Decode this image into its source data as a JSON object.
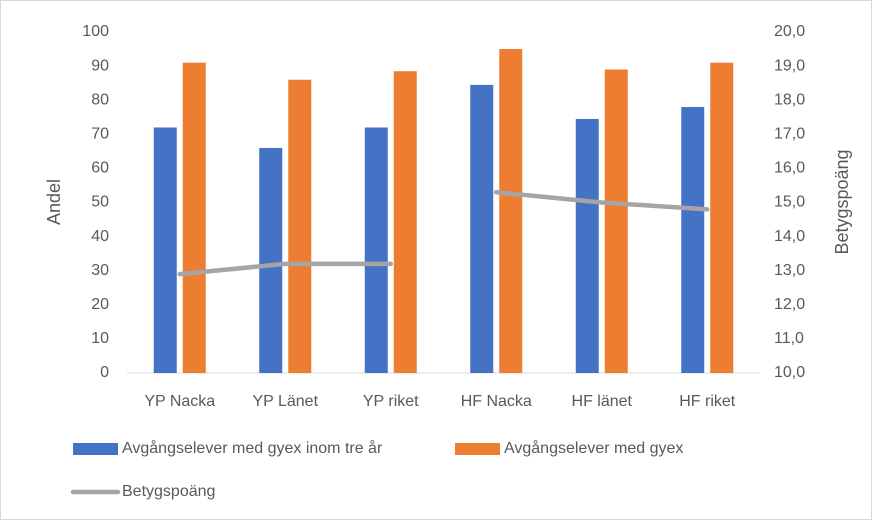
{
  "chart_data": {
    "type": "bar",
    "categories": [
      "YP Nacka",
      "YP Länet",
      "YP riket",
      "HF Nacka",
      "HF länet",
      "HF riket"
    ],
    "series": [
      {
        "name": "Avgångselever med gyex inom tre år",
        "color": "#4472c4",
        "values": [
          72,
          66,
          72,
          84.5,
          74.5,
          78
        ]
      },
      {
        "name": "Avgångselever med gyex",
        "color": "#ed7d31",
        "values": [
          91,
          86,
          88.5,
          95,
          89,
          91
        ]
      },
      {
        "name": "Betygspoäng",
        "color": "#a5a5a5",
        "type": "line",
        "axis": "y2",
        "values": [
          12.9,
          13.2,
          13.2,
          15.3,
          15.0,
          14.8
        ],
        "segments": [
          3,
          3
        ]
      }
    ],
    "ylabel": "Andel",
    "y2label": "Betygspoäng",
    "ylim": [
      0,
      100
    ],
    "yticks": [
      0,
      10,
      20,
      30,
      40,
      50,
      60,
      70,
      80,
      90,
      100
    ],
    "y2lim": [
      10,
      20
    ],
    "y2ticks": [
      {
        "value": 10,
        "label": "10,0"
      },
      {
        "value": 11,
        "label": "11,0"
      },
      {
        "value": 12,
        "label": "12,0"
      },
      {
        "value": 13,
        "label": "13,0"
      },
      {
        "value": 14,
        "label": "14,0"
      },
      {
        "value": 15,
        "label": "15,0"
      },
      {
        "value": 16,
        "label": "16,0"
      },
      {
        "value": 17,
        "label": "17,0"
      },
      {
        "value": 18,
        "label": "18,0"
      },
      {
        "value": 19,
        "label": "19,0"
      },
      {
        "value": 20,
        "label": "20,0"
      }
    ],
    "grid": false,
    "legend": "bottom"
  }
}
